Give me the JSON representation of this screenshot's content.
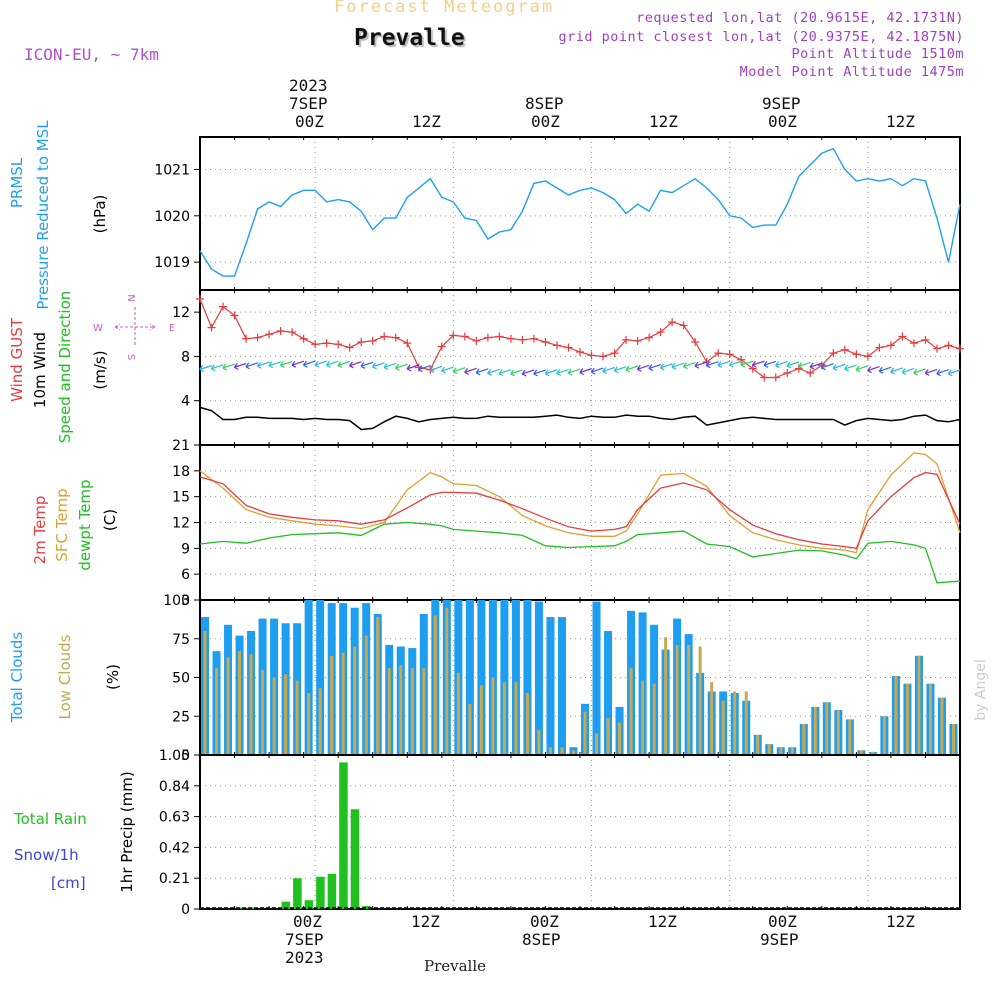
{
  "header": {
    "product": "Forecast Meteogram",
    "location": "Prevalle",
    "model": "ICON-EU, ~ 7km",
    "requested": "requested lon,lat (20.9615E, 42.1731N)",
    "grid_point": "grid point closest lon,lat (20.9375E, 42.1875N)",
    "point_altitude": "Point Altitude 1510m",
    "model_altitude": "Model Point Altitude 1475m"
  },
  "footer": {
    "location": "Prevalle",
    "credit": "by Angel"
  },
  "time_axis": {
    "top_labels": [
      "2023",
      "7SEP",
      "00Z",
      "12Z",
      "8SEP",
      "00Z",
      "12Z",
      "9SEP",
      "00Z",
      "12Z"
    ],
    "bottom_labels": [
      "00Z",
      "12Z",
      "00Z",
      "12Z",
      "00Z",
      "12Z",
      "7SEP",
      "8SEP",
      "9SEP",
      "2023"
    ]
  },
  "colors": {
    "pressure": "#1ea0f0",
    "gust": "#e83c3c",
    "wind": "#000000",
    "temp2m": "#e83c3c",
    "sfc_temp": "#e0a030",
    "dewpt": "#20c020",
    "total_clouds": "#1e9ef0",
    "low_clouds": "#c8a850",
    "rain": "#20c020",
    "snow": "#4040e0",
    "header_product": "#f0d08c",
    "header_info": "#a040c0",
    "axis_caption": "#c060c0"
  },
  "chart_data": [
    {
      "type": "line",
      "panel": "pressure",
      "ylabel_lines": [
        "PRMSL",
        "Pressure Reduced to MSL",
        "(hPa)"
      ],
      "yticks": [
        1019,
        1020,
        1021
      ],
      "ylim": [
        1018.4,
        1021.7
      ],
      "x_hours": [
        0,
        66
      ],
      "series": [
        {
          "name": "PRMSL",
          "x": [
            0,
            1,
            2,
            3,
            4,
            5,
            6,
            7,
            8,
            9,
            10,
            11,
            12,
            13,
            14,
            15,
            16,
            17,
            18,
            19,
            20,
            21,
            22,
            23,
            24,
            25,
            26,
            27,
            28,
            29,
            30,
            31,
            32,
            33,
            34,
            35,
            36,
            37,
            38,
            39,
            40,
            41,
            42,
            43,
            44,
            45,
            46,
            47,
            48,
            49,
            50,
            51,
            52,
            53,
            54,
            55,
            56,
            57,
            58,
            59,
            60,
            61,
            62,
            63,
            64,
            65,
            66
          ],
          "values": [
            1019.25,
            1018.85,
            1018.7,
            1018.7,
            1019.4,
            1020.15,
            1020.3,
            1020.2,
            1020.45,
            1020.55,
            1020.55,
            1020.3,
            1020.35,
            1020.3,
            1020.1,
            1019.7,
            1019.95,
            1019.95,
            1020.4,
            1020.6,
            1020.8,
            1020.4,
            1020.3,
            1019.95,
            1019.9,
            1019.5,
            1019.65,
            1019.7,
            1020.1,
            1020.7,
            1020.75,
            1020.6,
            1020.45,
            1020.55,
            1020.6,
            1020.5,
            1020.35,
            1020.05,
            1020.25,
            1020.1,
            1020.55,
            1020.5,
            1020.65,
            1020.8,
            1020.6,
            1020.35,
            1020.0,
            1019.95,
            1019.75,
            1019.8,
            1019.8,
            1020.25,
            1020.85,
            1021.1,
            1021.35,
            1021.45,
            1021.0,
            1020.75,
            1020.8,
            1020.75,
            1020.8,
            1020.65,
            1020.8,
            1020.75,
            1019.95,
            1019.0,
            1020.25
          ]
        }
      ]
    },
    {
      "type": "line",
      "panel": "wind",
      "ylabel_lines": [
        "Wind GUST",
        "10m Wind",
        "Speed and Direction",
        "(m/s)"
      ],
      "compass": {
        "n": "N",
        "s": "S",
        "w": "W",
        "e": "E"
      },
      "yticks": [
        4,
        8,
        12
      ],
      "ylim": [
        0,
        14
      ],
      "series": [
        {
          "name": "Wind GUST",
          "x": [
            0,
            1,
            2,
            3,
            4,
            5,
            6,
            7,
            8,
            9,
            10,
            11,
            12,
            13,
            14,
            15,
            16,
            17,
            18,
            19,
            20,
            21,
            22,
            23,
            24,
            25,
            26,
            27,
            28,
            29,
            30,
            31,
            32,
            33,
            34,
            35,
            36,
            37,
            38,
            39,
            40,
            41,
            42,
            43,
            44,
            45,
            46,
            47,
            48,
            49,
            50,
            51,
            52,
            53,
            54,
            55,
            56,
            57,
            58,
            59,
            60,
            61,
            62,
            63,
            64,
            65,
            66
          ],
          "values": [
            13.2,
            10.6,
            12.5,
            11.7,
            9.6,
            9.7,
            10.0,
            10.3,
            10.2,
            9.6,
            9.1,
            9.2,
            9.1,
            8.8,
            9.3,
            9.4,
            9.8,
            9.7,
            9.2,
            7.0,
            6.8,
            8.9,
            9.9,
            9.8,
            9.4,
            9.7,
            9.8,
            9.6,
            9.5,
            9.6,
            9.3,
            9.0,
            8.8,
            8.4,
            8.1,
            8.0,
            8.3,
            9.5,
            9.4,
            9.7,
            10.2,
            11.1,
            10.8,
            9.3,
            7.5,
            8.3,
            8.2,
            7.7,
            6.9,
            6.1,
            6.1,
            6.5,
            6.9,
            6.5,
            7.2,
            8.3,
            8.6,
            8.2,
            8.0,
            8.8,
            9.0,
            9.8,
            9.2,
            9.5,
            8.7,
            9.0,
            8.7
          ]
        },
        {
          "name": "10m Wind",
          "x": [
            0,
            1,
            2,
            3,
            4,
            5,
            6,
            7,
            8,
            9,
            10,
            11,
            12,
            13,
            14,
            15,
            16,
            17,
            18,
            19,
            20,
            21,
            22,
            23,
            24,
            25,
            26,
            27,
            28,
            29,
            30,
            31,
            32,
            33,
            34,
            35,
            36,
            37,
            38,
            39,
            40,
            41,
            42,
            43,
            44,
            45,
            46,
            47,
            48,
            49,
            50,
            51,
            52,
            53,
            54,
            55,
            56,
            57,
            58,
            59,
            60,
            61,
            62,
            63,
            64,
            65,
            66
          ],
          "values": [
            3.4,
            3.1,
            2.3,
            2.3,
            2.5,
            2.5,
            2.4,
            2.4,
            2.4,
            2.3,
            2.4,
            2.3,
            2.3,
            2.2,
            1.4,
            1.5,
            2.1,
            2.6,
            2.4,
            2.1,
            2.3,
            2.4,
            2.5,
            2.4,
            2.4,
            2.6,
            2.5,
            2.5,
            2.5,
            2.5,
            2.6,
            2.7,
            2.5,
            2.4,
            2.6,
            2.5,
            2.5,
            2.7,
            2.6,
            2.6,
            2.4,
            2.3,
            2.5,
            2.6,
            1.8,
            2.0,
            2.2,
            2.4,
            2.5,
            2.4,
            2.3,
            2.3,
            2.3,
            2.3,
            2.3,
            2.3,
            1.8,
            2.2,
            2.4,
            2.3,
            2.2,
            2.3,
            2.6,
            2.7,
            2.2,
            2.1,
            2.3
          ]
        }
      ]
    },
    {
      "type": "line",
      "panel": "temperature",
      "ylabel_lines": [
        "2m Temp",
        "SFC Temp",
        "dewpt Temp",
        "(C)"
      ],
      "yticks": [
        3,
        6,
        9,
        12,
        15,
        18,
        21
      ],
      "ylim": [
        3,
        21
      ],
      "series": [
        {
          "name": "2m Temp",
          "x": [
            0,
            2,
            4,
            6,
            8,
            10,
            12,
            14,
            16,
            18,
            20,
            21,
            22,
            24,
            26,
            28,
            30,
            32,
            34,
            36,
            37,
            38,
            40,
            42,
            44,
            46,
            48,
            50,
            52,
            54,
            56,
            57,
            58,
            60,
            62,
            63,
            64,
            66
          ],
          "values": [
            17.3,
            16.5,
            14.0,
            13.0,
            12.6,
            12.3,
            12.2,
            11.8,
            12.3,
            13.7,
            15.2,
            15.5,
            15.5,
            15.4,
            14.6,
            13.6,
            12.5,
            11.5,
            11.0,
            11.2,
            11.5,
            13.5,
            16.0,
            16.6,
            15.8,
            13.5,
            11.7,
            10.7,
            10.0,
            9.5,
            9.2,
            9.0,
            12.2,
            15.0,
            17.2,
            17.8,
            17.6,
            11.8
          ]
        },
        {
          "name": "SFC Temp",
          "x": [
            0,
            2,
            4,
            6,
            8,
            10,
            12,
            14,
            16,
            18,
            20,
            21,
            22,
            24,
            26,
            28,
            30,
            32,
            34,
            36,
            37,
            38,
            40,
            42,
            44,
            46,
            48,
            50,
            52,
            54,
            56,
            57,
            58,
            60,
            62,
            63,
            64,
            66
          ],
          "values": [
            18.0,
            16.0,
            13.5,
            12.6,
            12.2,
            11.8,
            11.6,
            11.3,
            12.0,
            15.8,
            17.8,
            17.3,
            16.5,
            16.3,
            15.0,
            12.8,
            11.6,
            10.8,
            10.4,
            10.4,
            11.0,
            13.0,
            17.5,
            17.7,
            16.2,
            12.8,
            10.8,
            10.0,
            9.4,
            9.0,
            8.8,
            8.5,
            13.5,
            17.5,
            20.1,
            19.9,
            18.8,
            10.8
          ]
        },
        {
          "name": "dewpt Temp",
          "x": [
            0,
            2,
            4,
            6,
            8,
            10,
            12,
            14,
            16,
            18,
            20,
            21,
            22,
            24,
            26,
            28,
            30,
            32,
            34,
            36,
            37,
            38,
            40,
            42,
            44,
            46,
            48,
            50,
            52,
            54,
            56,
            57,
            58,
            60,
            62,
            63,
            64,
            66
          ],
          "values": [
            9.5,
            9.8,
            9.6,
            10.2,
            10.6,
            10.7,
            10.8,
            10.5,
            11.8,
            12.0,
            11.8,
            11.6,
            11.2,
            11.0,
            10.8,
            10.5,
            9.3,
            9.1,
            9.2,
            9.3,
            9.8,
            10.6,
            10.8,
            11.0,
            9.5,
            9.2,
            8.0,
            8.4,
            8.8,
            8.7,
            8.2,
            7.8,
            9.6,
            9.8,
            9.4,
            9.0,
            5.0,
            5.2
          ]
        }
      ]
    },
    {
      "type": "bar",
      "panel": "clouds",
      "ylabel_lines": [
        "Total Clouds",
        "Low Clouds",
        "(%)"
      ],
      "yticks": [
        0,
        25,
        50,
        75,
        100
      ],
      "ylim": [
        0,
        100
      ],
      "series": [
        {
          "name": "Total Clouds",
          "x": [
            0,
            1,
            2,
            3,
            4,
            5,
            6,
            7,
            8,
            9,
            10,
            11,
            12,
            13,
            14,
            15,
            16,
            17,
            18,
            19,
            20,
            21,
            22,
            23,
            24,
            25,
            26,
            27,
            28,
            29,
            30,
            31,
            32,
            33,
            34,
            35,
            36,
            37,
            38,
            39,
            40,
            41,
            42,
            43,
            44,
            45,
            46,
            47,
            48,
            49,
            50,
            51,
            52,
            53,
            54,
            55,
            56,
            57,
            58,
            59,
            60,
            61,
            62,
            63,
            64,
            65,
            66
          ],
          "values": [
            89,
            67,
            84,
            77,
            80,
            88,
            88,
            85,
            85,
            100,
            100,
            98,
            98,
            95,
            98,
            91,
            71,
            70,
            69,
            91,
            100,
            100,
            100,
            100,
            100,
            100,
            100,
            100,
            100,
            99,
            89,
            89,
            5,
            33,
            99,
            80,
            31,
            93,
            92,
            84,
            68,
            88,
            78,
            53,
            41,
            41,
            40,
            35,
            13,
            7,
            5,
            5,
            20,
            31,
            34,
            29,
            23,
            3,
            2,
            25,
            51,
            46,
            64,
            46,
            37,
            20,
            0
          ]
        },
        {
          "name": "Low Clouds",
          "x": [
            0,
            1,
            2,
            3,
            4,
            5,
            6,
            7,
            8,
            9,
            10,
            11,
            12,
            13,
            14,
            15,
            16,
            17,
            18,
            19,
            20,
            21,
            22,
            23,
            24,
            25,
            26,
            27,
            28,
            29,
            30,
            31,
            32,
            33,
            34,
            35,
            36,
            37,
            38,
            39,
            40,
            41,
            42,
            43,
            44,
            45,
            46,
            47,
            48,
            49,
            50,
            51,
            52,
            53,
            54,
            55,
            56,
            57,
            58,
            59,
            60,
            61,
            62,
            63,
            64,
            65,
            66
          ],
          "values": [
            80,
            56,
            63,
            67,
            65,
            55,
            50,
            52,
            48,
            40,
            43,
            64,
            66,
            70,
            77,
            89,
            56,
            58,
            56,
            56,
            90,
            95,
            53,
            33,
            45,
            50,
            47,
            47,
            40,
            16,
            5,
            5,
            3,
            28,
            14,
            24,
            21,
            56,
            48,
            46,
            76,
            71,
            71,
            70,
            47,
            35,
            41,
            41,
            13,
            7,
            5,
            5,
            20,
            31,
            34,
            29,
            23,
            3,
            2,
            25,
            51,
            46,
            64,
            46,
            37,
            20,
            0
          ]
        }
      ]
    },
    {
      "type": "bar",
      "panel": "precip",
      "ylabel_lines": [
        "1hr Precip (mm)"
      ],
      "side_labels": [
        "Total  Rain",
        "Snow/1h",
        "[cm]"
      ],
      "yticks": [
        "0",
        "0.21",
        "0.42",
        "0.63",
        "0.84",
        "1.05"
      ],
      "ylim": [
        0,
        1.05
      ],
      "series": [
        {
          "name": "Total Rain",
          "x": [
            3,
            4,
            7,
            8,
            9,
            10,
            11,
            12,
            13,
            14
          ],
          "values": [
            0.01,
            0.01,
            0.05,
            0.21,
            0.06,
            0.22,
            0.24,
            1.0,
            0.68,
            0.02
          ]
        },
        {
          "name": "Snow/1h",
          "x": [],
          "values": []
        }
      ]
    }
  ]
}
